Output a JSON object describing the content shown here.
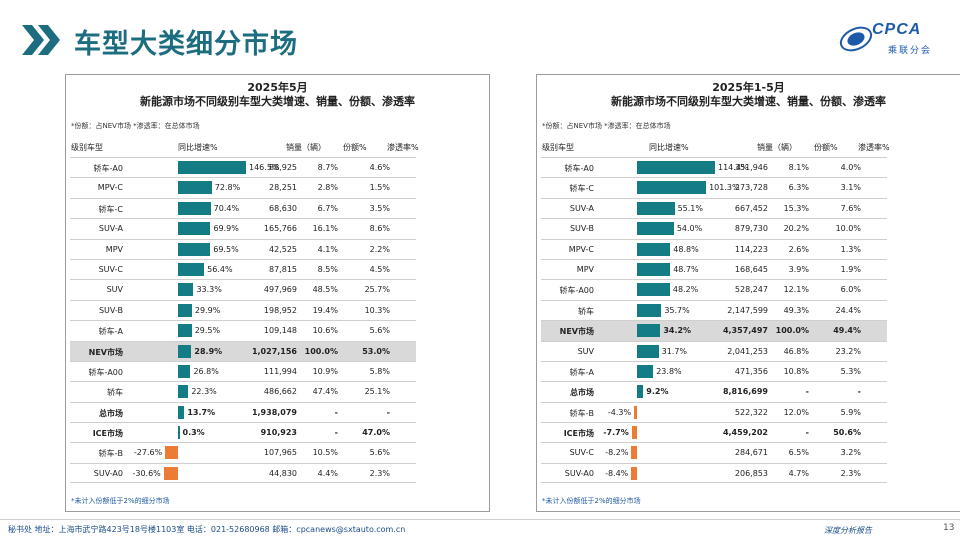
{
  "header": {
    "title": "车型大类细分市场"
  },
  "logo": {
    "text": "CPCA",
    "sub": "乘联分会"
  },
  "left": {
    "title_line1": "2025年5月",
    "title_line2": "新能源市场不同级别车型大类增速、销量、份额、渗透率",
    "note": "*份额：占NEV市场   *渗透率：在总体市场",
    "headers": {
      "name": "级别车型",
      "growth": "同比增速%",
      "volume": "销量（辆）",
      "share": "份额%",
      "penetration": "渗透率%"
    },
    "rows": [
      {
        "name": "轿车-A0",
        "growth": 146.5,
        "growth_label": "146.5%",
        "volume": "88,925",
        "share": "8.7%",
        "penetration": "4.6%"
      },
      {
        "name": "MPV-C",
        "growth": 72.8,
        "growth_label": "72.8%",
        "volume": "28,251",
        "share": "2.8%",
        "penetration": "1.5%"
      },
      {
        "name": "轿车-C",
        "growth": 70.4,
        "growth_label": "70.4%",
        "volume": "68,630",
        "share": "6.7%",
        "penetration": "3.5%"
      },
      {
        "name": "SUV-A",
        "growth": 69.9,
        "growth_label": "69.9%",
        "volume": "165,766",
        "share": "16.1%",
        "penetration": "8.6%"
      },
      {
        "name": "MPV",
        "growth": 69.5,
        "growth_label": "69.5%",
        "volume": "42,525",
        "share": "4.1%",
        "penetration": "2.2%"
      },
      {
        "name": "SUV-C",
        "growth": 56.4,
        "growth_label": "56.4%",
        "volume": "87,815",
        "share": "8.5%",
        "penetration": "4.5%"
      },
      {
        "name": "SUV",
        "growth": 33.3,
        "growth_label": "33.3%",
        "volume": "497,969",
        "share": "48.5%",
        "penetration": "25.7%"
      },
      {
        "name": "SUV-B",
        "growth": 29.9,
        "growth_label": "29.9%",
        "volume": "198,952",
        "share": "19.4%",
        "penetration": "10.3%"
      },
      {
        "name": "轿车-A",
        "growth": 29.5,
        "growth_label": "29.5%",
        "volume": "109,148",
        "share": "10.6%",
        "penetration": "5.6%"
      },
      {
        "name": "NEV市场",
        "growth": 28.9,
        "growth_label": "28.9%",
        "volume": "1,027,156",
        "share": "100.0%",
        "penetration": "53.0%",
        "style": "hl"
      },
      {
        "name": "轿车-A00",
        "growth": 26.8,
        "growth_label": "26.8%",
        "volume": "111,994",
        "share": "10.9%",
        "penetration": "5.8%"
      },
      {
        "name": "轿车",
        "growth": 22.3,
        "growth_label": "22.3%",
        "volume": "486,662",
        "share": "47.4%",
        "penetration": "25.1%"
      },
      {
        "name": "总市场",
        "growth": 13.7,
        "growth_label": "13.7%",
        "volume": "1,938,079",
        "share": "-",
        "penetration": "-",
        "style": "bold"
      },
      {
        "name": "ICE市场",
        "growth": 0.3,
        "growth_label": "0.3%",
        "volume": "910,923",
        "share": "-",
        "penetration": "47.0%",
        "style": "bold"
      },
      {
        "name": "轿车-B",
        "growth": -27.6,
        "growth_label": "-27.6%",
        "volume": "107,965",
        "share": "10.5%",
        "penetration": "5.6%"
      },
      {
        "name": "SUV-A0",
        "growth": -30.6,
        "growth_label": "-30.6%",
        "volume": "44,830",
        "share": "4.4%",
        "penetration": "2.3%"
      }
    ],
    "footnote": "*未计入份额低于2%的细分市场"
  },
  "right": {
    "title_line1": "2025年1-5月",
    "title_line2": "新能源市场不同级别车型大类增速、销量、份额、渗透率",
    "note": "*份额：占NEV市场   *渗透率：在总体市场",
    "headers": {
      "name": "级别车型",
      "growth": "同比增速%",
      "volume": "销量（辆）",
      "share": "份额%",
      "penetration": "渗透率%"
    },
    "rows": [
      {
        "name": "轿车-A0",
        "growth": 114.4,
        "growth_label": "114.4%",
        "volume": "351,946",
        "share": "8.1%",
        "penetration": "4.0%"
      },
      {
        "name": "轿车-C",
        "growth": 101.3,
        "growth_label": "101.3%",
        "volume": "273,728",
        "share": "6.3%",
        "penetration": "3.1%"
      },
      {
        "name": "SUV-A",
        "growth": 55.1,
        "growth_label": "55.1%",
        "volume": "667,452",
        "share": "15.3%",
        "penetration": "7.6%"
      },
      {
        "name": "SUV-B",
        "growth": 54.0,
        "growth_label": "54.0%",
        "volume": "879,730",
        "share": "20.2%",
        "penetration": "10.0%"
      },
      {
        "name": "MPV-C",
        "growth": 48.8,
        "growth_label": "48.8%",
        "volume": "114,223",
        "share": "2.6%",
        "penetration": "1.3%"
      },
      {
        "name": "MPV",
        "growth": 48.7,
        "growth_label": "48.7%",
        "volume": "168,645",
        "share": "3.9%",
        "penetration": "1.9%"
      },
      {
        "name": "轿车-A00",
        "growth": 48.2,
        "growth_label": "48.2%",
        "volume": "528,247",
        "share": "12.1%",
        "penetration": "6.0%"
      },
      {
        "name": "轿车",
        "growth": 35.7,
        "growth_label": "35.7%",
        "volume": "2,147,599",
        "share": "49.3%",
        "penetration": "24.4%"
      },
      {
        "name": "NEV市场",
        "growth": 34.2,
        "growth_label": "34.2%",
        "volume": "4,357,497",
        "share": "100.0%",
        "penetration": "49.4%",
        "style": "hl"
      },
      {
        "name": "SUV",
        "growth": 31.7,
        "growth_label": "31.7%",
        "volume": "2,041,253",
        "share": "46.8%",
        "penetration": "23.2%"
      },
      {
        "name": "轿车-A",
        "growth": 23.8,
        "growth_label": "23.8%",
        "volume": "471,356",
        "share": "10.8%",
        "penetration": "5.3%"
      },
      {
        "name": "总市场",
        "growth": 9.2,
        "growth_label": "9.2%",
        "volume": "8,816,699",
        "share": "-",
        "penetration": "-",
        "style": "bold"
      },
      {
        "name": "轿车-B",
        "growth": -4.3,
        "growth_label": "-4.3%",
        "volume": "522,322",
        "share": "12.0%",
        "penetration": "5.9%"
      },
      {
        "name": "ICE市场",
        "growth": -7.7,
        "growth_label": "-7.7%",
        "volume": "4,459,202",
        "share": "-",
        "penetration": "50.6%",
        "style": "bold"
      },
      {
        "name": "SUV-C",
        "growth": -8.2,
        "growth_label": "-8.2%",
        "volume": "284,671",
        "share": "6.5%",
        "penetration": "3.2%"
      },
      {
        "name": "SUV-A0",
        "growth": -8.4,
        "growth_label": "-8.4%",
        "volume": "206,853",
        "share": "4.7%",
        "penetration": "2.3%"
      }
    ],
    "footnote": "*未计入份额低于2%的细分市场"
  },
  "footer": {
    "text": "秘书处  地址：上海市武宁路423号18号楼1103室  电话：021-52680968   邮箱：cpcanews@sxtauto.com.cn",
    "right": "深度分析报告",
    "page": "13"
  },
  "colors": {
    "accent": "#1c6d80",
    "bar_positive": "#137c84",
    "bar_negative": "#ec7b33",
    "highlight_row": "#d9d9d9"
  }
}
